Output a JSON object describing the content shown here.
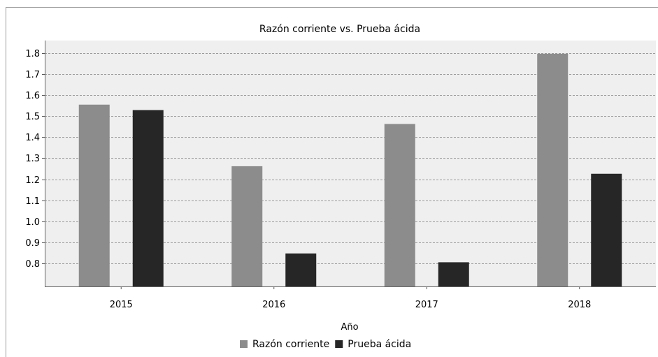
{
  "chart_data": {
    "type": "bar",
    "title": "Razón corriente vs. Prueba ácida",
    "xlabel": "Año",
    "ylabel": "",
    "categories": [
      "2015",
      "2016",
      "2017",
      "2018"
    ],
    "series": [
      {
        "name": "Razón corriente",
        "values": [
          1.555,
          1.262,
          1.463,
          1.797
        ],
        "color": "#8c8c8c"
      },
      {
        "name": "Prueba ácida",
        "values": [
          1.529,
          0.847,
          0.805,
          1.226
        ],
        "color": "#262626"
      }
    ],
    "ylim": [
      0.69,
      1.86
    ],
    "yticks": [
      0.8,
      0.9,
      1.0,
      1.1,
      1.2,
      1.3,
      1.4,
      1.5,
      1.6,
      1.7,
      1.8
    ],
    "ytick_labels": [
      "0.8",
      "0.9",
      "1.0",
      "1.1",
      "1.2",
      "1.3",
      "1.4",
      "1.5",
      "1.6",
      "1.7",
      "1.8"
    ],
    "grid": true,
    "legend_position": "bottom-center",
    "plot_background": "#efefef"
  }
}
